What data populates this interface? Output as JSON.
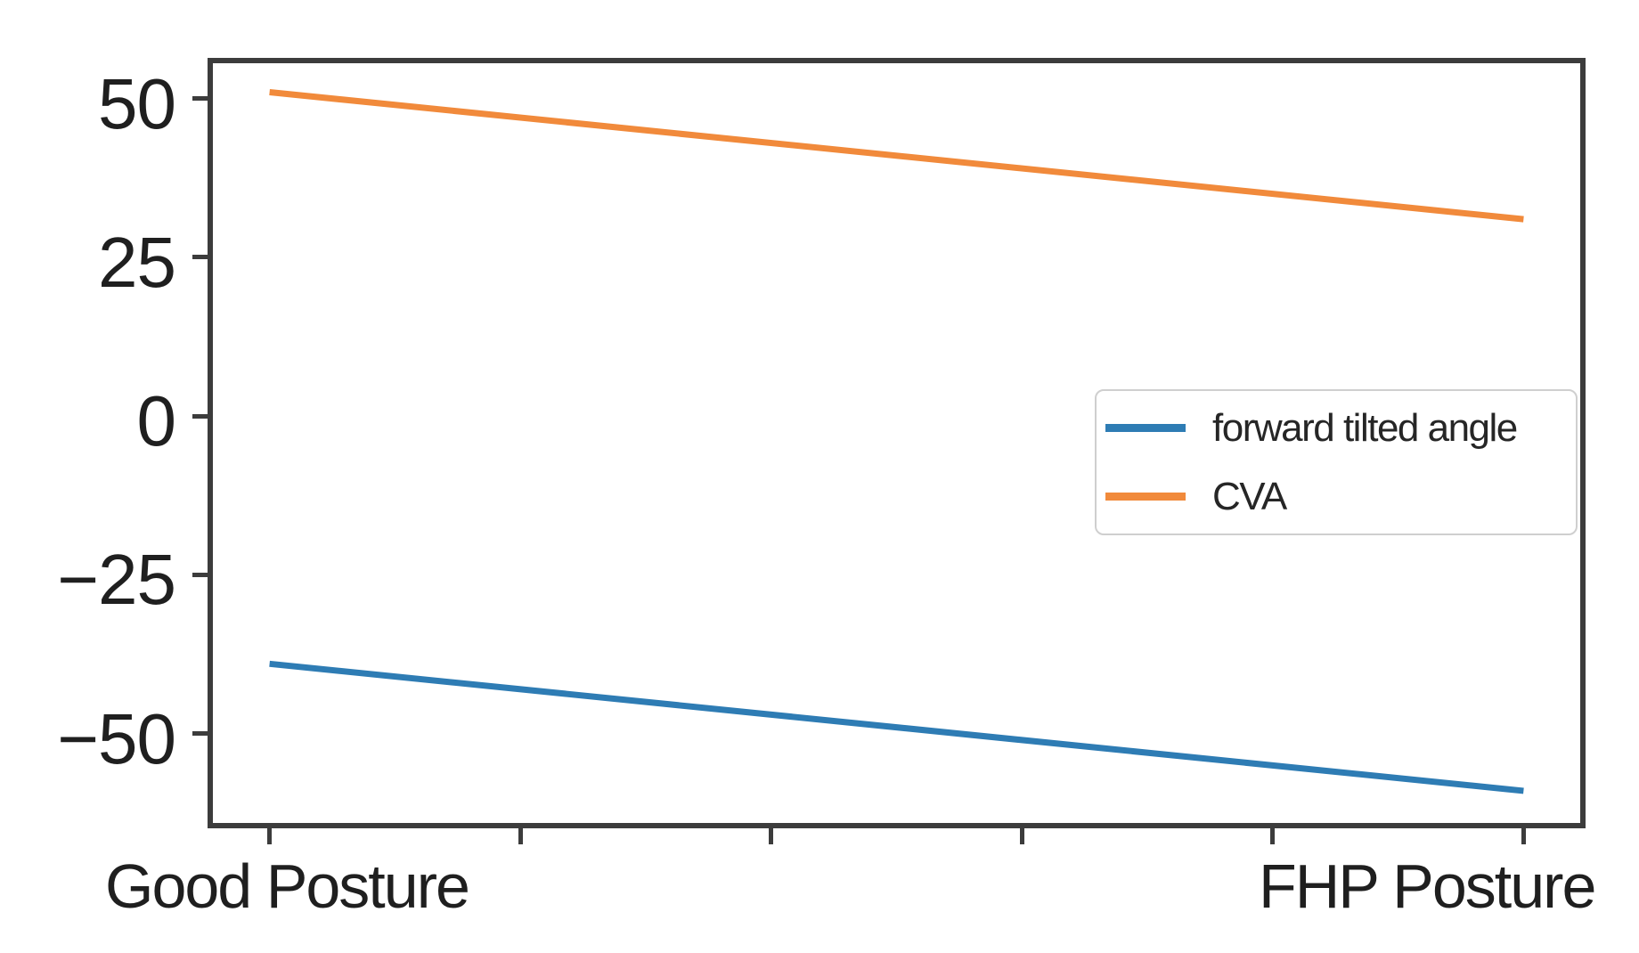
{
  "chart_data": {
    "type": "line",
    "title": "",
    "xlabel": "",
    "ylabel": "",
    "x_categories": [
      "Good Posture",
      "FHP Posture"
    ],
    "series": [
      {
        "name": "forward tilted angle",
        "color": "#2e7cb4",
        "values": [
          -39,
          -59
        ]
      },
      {
        "name": "CVA",
        "color": "#f18a3b",
        "values": [
          51,
          31
        ]
      }
    ],
    "yticks": [
      {
        "value": 50,
        "label": "50"
      },
      {
        "value": 25,
        "label": "25"
      },
      {
        "value": 0,
        "label": "0"
      },
      {
        "value": -25,
        "label": "−25"
      },
      {
        "value": -50,
        "label": "−50"
      }
    ],
    "ylim": [
      -64.9,
      56.4
    ],
    "x_tick_count": 6,
    "grid": false,
    "legend": {
      "position": "center-right",
      "entries": [
        "forward tilted angle",
        "CVA"
      ]
    },
    "colors": {
      "spine": "#3c3c3c",
      "text": "#1f1f1f",
      "background": "#ffffff"
    }
  }
}
